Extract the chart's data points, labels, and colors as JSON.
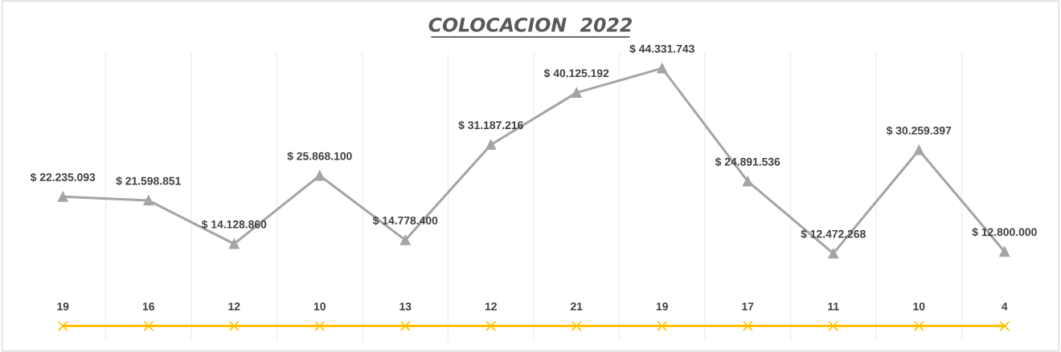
{
  "chart_data": {
    "type": "line",
    "title": "COLOCACION  2022",
    "categories": [
      null,
      null,
      null,
      null,
      null,
      null,
      null,
      null,
      null,
      null,
      null,
      null
    ],
    "series": [
      {
        "color": "#a5a5a5",
        "marker": "triangle",
        "values": [
          22235093,
          21598851,
          14128860,
          25868100,
          14778400,
          31187216,
          40125192,
          44331743,
          24891536,
          12472268,
          30259397,
          12800000
        ],
        "value_labels": [
          "$ 22.235.093",
          "$ 21.598.851",
          "$ 14.128.860",
          "$ 25.868.100",
          "$ 14.778.400",
          "$ 31.187.216",
          "$ 40.125.192",
          "$ 44.331.743",
          "$ 24.891.536",
          "$ 12.472.268",
          "$ 30.259.397",
          "$ 12.800.000"
        ]
      },
      {
        "color": "#ffc000",
        "marker": "cross",
        "values": [
          19,
          16,
          12,
          10,
          13,
          12,
          21,
          19,
          17,
          11,
          10,
          4
        ],
        "data_labels": true
      }
    ],
    "grid": "x"
  }
}
